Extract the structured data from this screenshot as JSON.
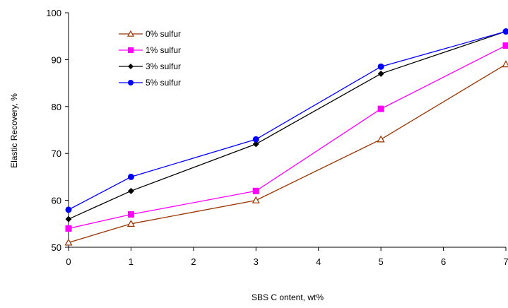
{
  "chart_data": {
    "type": "line",
    "title": "",
    "xlabel": "SBS C ontent, wt%",
    "ylabel": "Elastic Recovery, %",
    "x_ticks": [
      "0",
      "1",
      "2",
      "3",
      "4",
      "5",
      "6",
      "7"
    ],
    "y_ticks": [
      "50",
      "60",
      "70",
      "80",
      "90",
      "100"
    ],
    "xlim": [
      0,
      7
    ],
    "ylim": [
      50,
      100
    ],
    "grid": false,
    "legend_position": "top-left",
    "x": [
      0,
      1,
      3,
      5,
      7
    ],
    "series": [
      {
        "name": "0% sulfur",
        "values": [
          51,
          55,
          60,
          73,
          89
        ],
        "color": "#993300",
        "marker": "open-triangle"
      },
      {
        "name": "1% sulfur",
        "values": [
          54,
          57,
          62,
          79.5,
          93
        ],
        "color": "#ff00ff",
        "marker": "square"
      },
      {
        "name": "3% sulfur",
        "values": [
          56,
          62,
          72,
          87,
          96
        ],
        "color": "#000000",
        "marker": "diamond"
      },
      {
        "name": "5% sulfur",
        "values": [
          58,
          65,
          73,
          88.5,
          96
        ],
        "color": "#0000ff",
        "marker": "circle"
      }
    ]
  }
}
